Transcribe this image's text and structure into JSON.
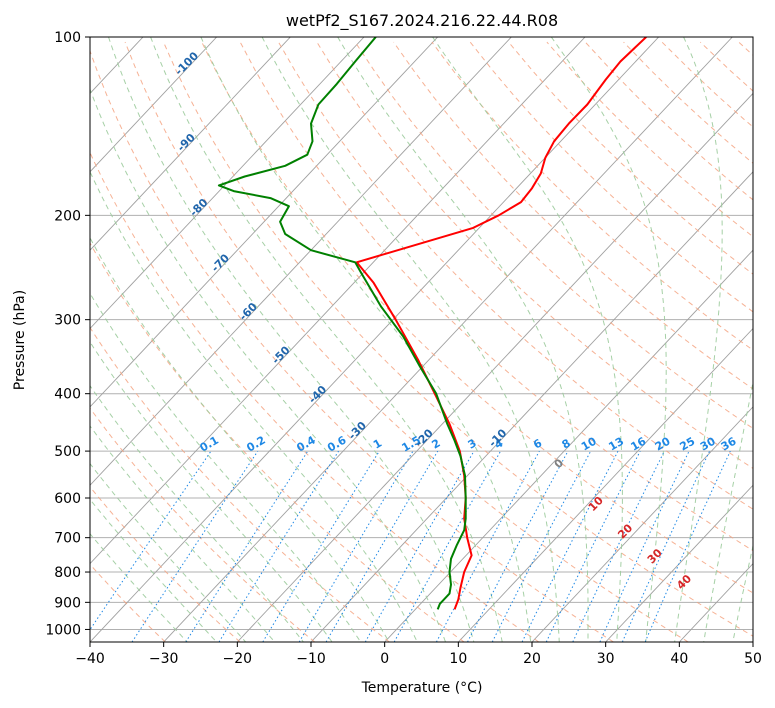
{
  "chart_data": {
    "type": "line",
    "title": "wetPf2_S167.2024.216.22.44.R08",
    "xlabel": "Temperature (°C)",
    "ylabel": "Pressure (hPa)",
    "xlim": [
      -40,
      50
    ],
    "ylim": [
      1050,
      100
    ],
    "y_scale": "log",
    "x_ticks": [
      "−40",
      "−30",
      "−20",
      "−10",
      "0",
      "10",
      "20",
      "30",
      "40",
      "50"
    ],
    "y_ticks": [
      "100",
      "200",
      "300",
      "400",
      "500",
      "600",
      "700",
      "800",
      "900",
      "1000"
    ],
    "grid": true,
    "series": [
      {
        "color": "#ff0000",
        "points": [
          [
            9.5,
            925
          ],
          [
            10.0,
            890
          ],
          [
            10.3,
            850
          ],
          [
            10.8,
            800
          ],
          [
            11.8,
            750
          ],
          [
            11.2,
            700
          ],
          [
            10.8,
            650
          ],
          [
            11.0,
            600
          ],
          [
            10.8,
            550
          ],
          [
            10.2,
            500
          ],
          [
            8.8,
            450
          ],
          [
            6.8,
            400
          ],
          [
            4.5,
            350
          ],
          [
            1.5,
            300
          ],
          [
            -1.5,
            260
          ],
          [
            -3.8,
            240
          ],
          [
            12.0,
            210
          ],
          [
            15.5,
            200
          ],
          [
            18.5,
            190
          ],
          [
            20.0,
            180
          ],
          [
            21.2,
            170
          ],
          [
            21.8,
            160
          ],
          [
            23.0,
            150
          ],
          [
            25.0,
            140
          ],
          [
            27.5,
            130
          ],
          [
            30.0,
            118
          ],
          [
            32.0,
            110
          ],
          [
            35.5,
            100
          ]
        ]
      },
      {
        "color": "#008000",
        "points": [
          [
            7.2,
            925
          ],
          [
            7.5,
            905
          ],
          [
            8.8,
            870
          ],
          [
            9.0,
            840
          ],
          [
            8.8,
            800
          ],
          [
            9.0,
            760
          ],
          [
            9.8,
            720
          ],
          [
            10.8,
            680
          ],
          [
            11.0,
            650
          ],
          [
            11.0,
            600
          ],
          [
            10.9,
            550
          ],
          [
            10.3,
            510
          ],
          [
            9.5,
            480
          ],
          [
            8.5,
            450
          ],
          [
            7.0,
            400
          ],
          [
            4.8,
            360
          ],
          [
            2.5,
            320
          ],
          [
            -0.5,
            285
          ],
          [
            -3.2,
            250
          ],
          [
            -4.0,
            240
          ],
          [
            -10.0,
            229
          ],
          [
            -13.5,
            215
          ],
          [
            -14.2,
            205
          ],
          [
            -13.0,
            193
          ],
          [
            -15.5,
            187
          ],
          [
            -20.5,
            182
          ],
          [
            -22.5,
            178
          ],
          [
            -19.0,
            172
          ],
          [
            -13.5,
            165
          ],
          [
            -10.5,
            158
          ],
          [
            -9.8,
            150
          ],
          [
            -10.0,
            140
          ],
          [
            -9.0,
            130
          ],
          [
            -6.5,
            120
          ],
          [
            -4.0,
            110
          ],
          [
            -1.2,
            100
          ]
        ]
      }
    ],
    "dry_adiabat_labels": [
      "-100",
      "-90",
      "-80",
      "-70",
      "-60",
      "-50",
      "-40",
      "-30",
      "-20",
      "-10"
    ],
    "mixing_ratio_labels": [
      "0.1",
      "0.2",
      "0.4",
      "0.6",
      "1",
      "1.5",
      "2",
      "3",
      "4",
      "6",
      "8",
      "10",
      "13",
      "16",
      "20",
      "25",
      "30",
      "36"
    ],
    "moist_adiabat_labels": [
      "0",
      "10",
      "20",
      "30",
      "40"
    ],
    "colors": {
      "isotherm": "#a0a0a0",
      "isobar": "#b0b0b0",
      "dry_adiabat": "#f4a582",
      "moist_adiabat": "#9ccb9c",
      "mixing_ratio": "#1e88e5",
      "dry_label": "#2166ac",
      "moist_label_zero": "#808080",
      "moist_label": "#d62728",
      "mixing_label": "#1e88e5"
    }
  }
}
